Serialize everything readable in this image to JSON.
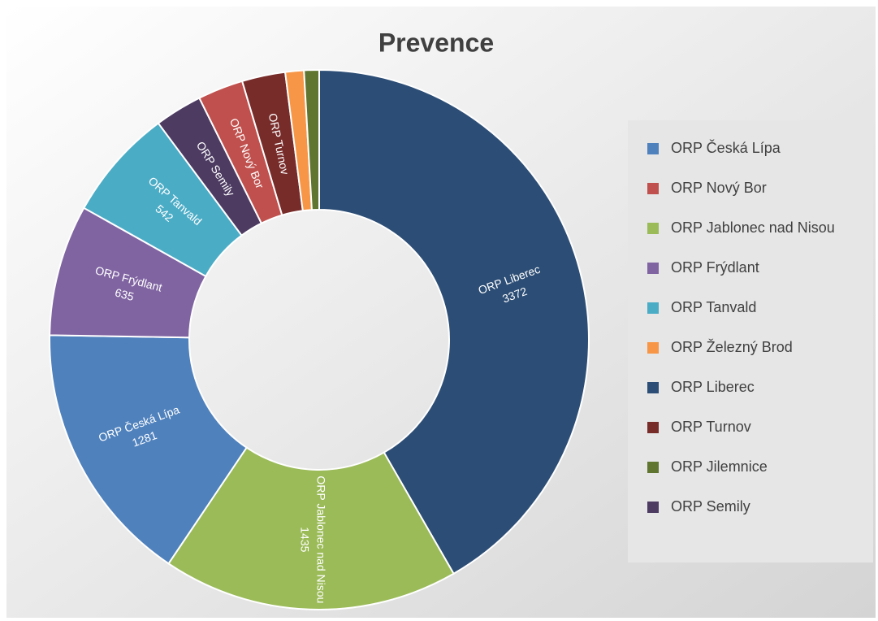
{
  "chart_data": {
    "type": "donut",
    "title": "Prevence",
    "categories": [
      "ORP Liberec",
      "ORP Jablonec nad Nisou",
      "ORP Česká Lípa",
      "ORP Frýdlant",
      "ORP Tanvald",
      "ORP Semily",
      "ORP Nový Bor",
      "ORP Turnov",
      "ORP Železný Brod",
      "ORP Jilemnice"
    ],
    "values": [
      3372,
      1435,
      1281,
      635,
      542,
      230,
      220,
      210,
      90,
      73
    ],
    "colors": [
      "#2c4d75",
      "#9bbb59",
      "#4f81bd",
      "#8064a2",
      "#4bacc6",
      "#4d3b62",
      "#c0504d",
      "#772c2a",
      "#f79646",
      "#5f7530"
    ],
    "legend": [
      "ORP Česká Lípa",
      "ORP Nový Bor",
      "ORP Jablonec nad Nisou",
      "ORP Frýdlant",
      "ORP Tanvald",
      "ORP Železný Brod",
      "ORP Liberec",
      "ORP Turnov",
      "ORP Jilemnice",
      "ORP Semily"
    ],
    "legend_position": "right"
  }
}
